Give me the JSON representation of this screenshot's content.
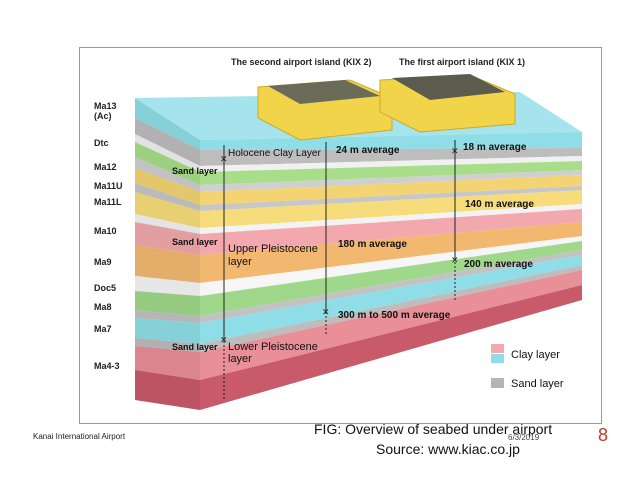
{
  "diagram": {
    "island_labels": {
      "kix2": "The second airport island (KIX 2)",
      "kix1": "The first airport island (KIX 1)"
    },
    "strata": [
      "Ma13\n(Ac)",
      "Dtc",
      "Ma12",
      "Ma11U",
      "Ma11L",
      "Ma10",
      "Ma9",
      "Doc5",
      "Ma8",
      "Ma7",
      "Ma4-3"
    ],
    "annotations": {
      "holocene": "Holocene Clay Layer",
      "avg24": "24 m average",
      "avg18": "18 m average",
      "avg140": "140 m average",
      "avg180": "180 m average",
      "avg200": "200 m average",
      "avg300": "300 m to 500 m average",
      "sand1": "Sand layer",
      "sand2": "Sand layer",
      "sand3": "Sand layer",
      "upper1": "Upper Pleistocene",
      "upper2": "layer",
      "lower1": "Lower Pleistocene",
      "lower2": "layer"
    },
    "legend": {
      "clay": "Clay layer",
      "sand": "Sand layer"
    }
  },
  "footer": {
    "left": "Kanai International Airport",
    "caption": "FIG: Overview of seabed under airport",
    "source": "Source: www.kiac.co.jp",
    "date": "6/3/2019",
    "page": "8"
  },
  "colors": {
    "top_cyan": "#8fdde6",
    "sand_gray": "#b5b5b5",
    "green": "#a8dd8a",
    "yellow": "#f4d472",
    "orange": "#f3b870",
    "pink": "#f2a8ac",
    "deep_red": "#c85a6a",
    "island_yellow": "#f2d44a",
    "page_red": "#c0392b"
  }
}
